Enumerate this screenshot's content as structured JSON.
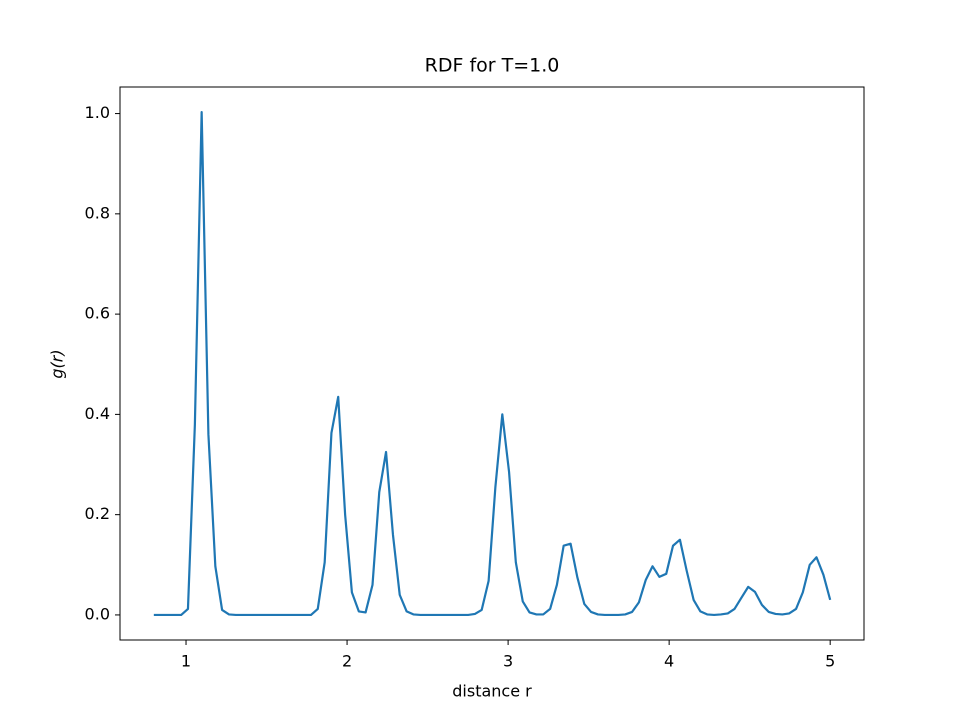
{
  "chart_data": {
    "type": "line",
    "title": "RDF for T=1.0",
    "x_label": "distance r",
    "y_label": "g(r)",
    "x": [
      0.8,
      0.842,
      0.885,
      0.927,
      0.97,
      1.012,
      1.055,
      1.097,
      1.139,
      1.182,
      1.224,
      1.267,
      1.309,
      1.352,
      1.394,
      1.436,
      1.479,
      1.521,
      1.564,
      1.606,
      1.648,
      1.691,
      1.733,
      1.776,
      1.818,
      1.861,
      1.903,
      1.945,
      1.988,
      2.03,
      2.073,
      2.115,
      2.158,
      2.2,
      2.242,
      2.285,
      2.327,
      2.37,
      2.412,
      2.455,
      2.497,
      2.539,
      2.582,
      2.624,
      2.667,
      2.709,
      2.752,
      2.794,
      2.836,
      2.879,
      2.921,
      2.964,
      3.006,
      3.048,
      3.091,
      3.133,
      3.176,
      3.218,
      3.261,
      3.303,
      3.345,
      3.388,
      3.43,
      3.473,
      3.515,
      3.558,
      3.6,
      3.642,
      3.685,
      3.727,
      3.77,
      3.812,
      3.855,
      3.897,
      3.939,
      3.982,
      4.024,
      4.067,
      4.109,
      4.152,
      4.194,
      4.236,
      4.279,
      4.321,
      4.364,
      4.406,
      4.448,
      4.491,
      4.533,
      4.576,
      4.618,
      4.661,
      4.703,
      4.745,
      4.788,
      4.83,
      4.873,
      4.915,
      4.958,
      5.0
    ],
    "values": [
      0,
      0,
      0,
      0,
      0,
      0.012,
      0.38,
      1.003,
      0.36,
      0.097,
      0.01,
      0.001,
      0,
      0,
      0,
      0,
      0,
      0,
      0,
      0,
      0,
      0,
      0,
      0,
      0.012,
      0.105,
      0.363,
      0.435,
      0.2,
      0.045,
      0.007,
      0.005,
      0.06,
      0.245,
      0.325,
      0.16,
      0.04,
      0.007,
      0.001,
      0,
      0,
      0,
      0,
      0,
      0,
      0,
      0,
      0.002,
      0.01,
      0.068,
      0.255,
      0.4,
      0.285,
      0.105,
      0.027,
      0.005,
      0.001,
      0.001,
      0.012,
      0.06,
      0.138,
      0.142,
      0.075,
      0.022,
      0.006,
      0.001,
      0,
      0,
      0,
      0.001,
      0.006,
      0.025,
      0.07,
      0.097,
      0.076,
      0.082,
      0.138,
      0.15,
      0.088,
      0.03,
      0.007,
      0.001,
      0,
      0.001,
      0.003,
      0.012,
      0.034,
      0.056,
      0.046,
      0.02,
      0.006,
      0.002,
      0.001,
      0.003,
      0.012,
      0.045,
      0.1,
      0.115,
      0.08,
      0.03
    ],
    "color": "#1f77b4",
    "xlim": [
      0.59,
      5.21
    ],
    "xticks": [
      1,
      2,
      3,
      4,
      5
    ],
    "ylim": [
      -0.05,
      1.053
    ],
    "yticks": [
      {
        "value": 0,
        "label": "0.0"
      },
      0.2,
      0.4,
      0.6,
      0.8,
      {
        "value": 1,
        "label": "1.0"
      }
    ],
    "grid": false
  }
}
